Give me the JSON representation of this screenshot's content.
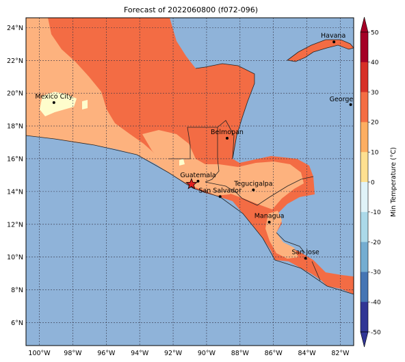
{
  "title": "Forecast of 2022060800 (f072-096)",
  "map": {
    "colors": {
      "ocean": "#8fb3d9",
      "band_10_20": "#fdb27e",
      "band_20_30": "#f36c44",
      "band_0_10": "#fefdcc",
      "border": "#222222",
      "grid": "#333344"
    },
    "lon_labels": [
      "100°W",
      "98°W",
      "96°W",
      "94°W",
      "92°W",
      "90°W",
      "88°W",
      "86°W",
      "84°W",
      "82°W"
    ],
    "lat_labels": [
      "24°N",
      "22°N",
      "20°N",
      "18°N",
      "16°N",
      "14°N",
      "12°N",
      "10°N",
      "8°N",
      "6°N"
    ],
    "cities": [
      {
        "name": "Havana",
        "lon": -82.38,
        "lat": 23.13
      },
      {
        "name": "Mexico City",
        "lon": -99.13,
        "lat": 19.43
      },
      {
        "name": "George Town",
        "label": "George Tov",
        "lon": -81.38,
        "lat": 19.3
      },
      {
        "name": "Belmopan",
        "lon": -88.77,
        "lat": 17.25
      },
      {
        "name": "Guatemala",
        "lon": -90.51,
        "lat": 14.63
      },
      {
        "name": "Tegucigalpa",
        "lon": -87.2,
        "lat": 14.1
      },
      {
        "name": "San Salvador",
        "lon": -89.19,
        "lat": 13.69
      },
      {
        "name": "Managua",
        "lon": -86.25,
        "lat": 12.13
      },
      {
        "name": "San Jose",
        "lon": -84.08,
        "lat": 9.93
      }
    ],
    "highlight_marker": {
      "symbol": "red-star",
      "lon": -90.9,
      "lat": 14.45
    }
  },
  "colorbar": {
    "label": "Min Temperature (°C)",
    "ticks": [
      "50",
      "40",
      "30",
      "20",
      "10",
      "0",
      "-10",
      "-20",
      "-30",
      "-40",
      "-50"
    ],
    "colors_top_to_bottom": [
      "#a50026",
      "#d73027",
      "#f46d43",
      "#fdae61",
      "#fee090",
      "#ffffbf",
      "#e0f3f8",
      "#abd9e9",
      "#74add1",
      "#4575b4",
      "#313695"
    ],
    "extend": "both"
  }
}
